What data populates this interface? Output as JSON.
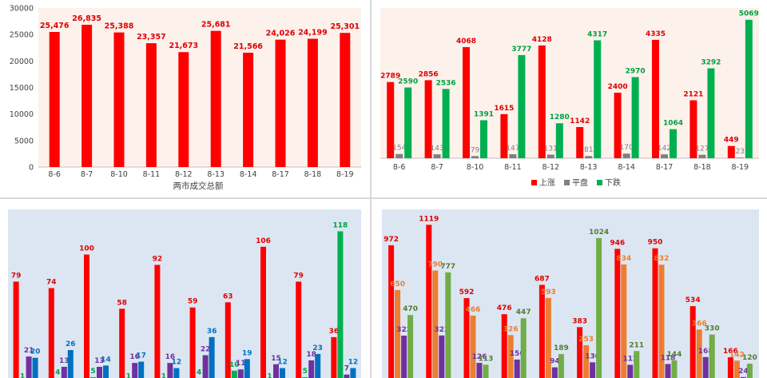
{
  "colors": {
    "red": "#ff0000",
    "gray": "#7f7f7f",
    "green": "#00b050",
    "purple": "#7030a0",
    "blue": "#0070c0",
    "orange": "#ed7d31",
    "olive": "#70ad47",
    "plot_bg_top": "#fdf1ec",
    "plot_bg_bottom": "#dce6f2"
  },
  "chart_data": [
    {
      "type": "bar",
      "title": "",
      "xlabel": "两市成交总额",
      "ylabel": "",
      "ylim": [
        0,
        30000
      ],
      "yticks": [
        "0",
        "5000",
        "10000",
        "15000",
        "20000",
        "25000",
        "30000"
      ],
      "categories": [
        "8-6",
        "8-7",
        "8-10",
        "8-11",
        "8-12",
        "8-13",
        "8-14",
        "8-17",
        "8-18",
        "8-19"
      ],
      "values": [
        25476,
        26835,
        25388,
        23357,
        21673,
        25681,
        21566,
        24026,
        24199,
        25301
      ],
      "data_labels": [
        "25,476",
        "26,835",
        "25,388",
        "23,357",
        "21,673",
        "25,681",
        "21,566",
        "24,026",
        "24,199",
        "25,301"
      ],
      "grid": false
    },
    {
      "type": "bar",
      "title": "",
      "categories": [
        "8-6",
        "8-7",
        "8-10",
        "8-11",
        "8-12",
        "8-13",
        "8-14",
        "8-17",
        "8-18",
        "8-19"
      ],
      "ylim": [
        0,
        5500
      ],
      "legend_position": "bottom",
      "series": [
        {
          "name": "上涨",
          "values": [
            2789,
            2856,
            4068,
            1615,
            4128,
            1142,
            2400,
            4335,
            2121,
            449
          ]
        },
        {
          "name": "平盘",
          "values": [
            154,
            143,
            79,
            147,
            131,
            81,
            170,
            142,
            127,
            23
          ]
        },
        {
          "name": "下跌",
          "values": [
            2590,
            2536,
            1391,
            3777,
            1280,
            4317,
            2970,
            1064,
            3292,
            5069
          ]
        }
      ],
      "grid": false
    },
    {
      "type": "bar",
      "title": "",
      "ylim": [
        0,
        135
      ],
      "series": [
        {
          "values": [
            79,
            74,
            100,
            58,
            92,
            59,
            63,
            106,
            79,
            36
          ]
        },
        {
          "values": [
            1,
            4,
            5,
            1,
            1,
            4,
            10,
            1,
            5,
            118
          ]
        },
        {
          "values": [
            21,
            13,
            13,
            16,
            16,
            22,
            11,
            15,
            18,
            7
          ]
        },
        {
          "values": [
            20,
            26,
            14,
            17,
            12,
            36,
            19,
            12,
            23,
            12
          ]
        }
      ],
      "data_labels": [
        [
          "79",
          "74",
          "100",
          "58",
          "92",
          "59",
          "63",
          "106",
          "79",
          "36"
        ],
        [
          "1",
          "4",
          "5",
          "1",
          "1",
          "4",
          "10",
          "1",
          "5",
          "118"
        ],
        [
          "21",
          "13",
          "13",
          "16",
          "16",
          "22",
          "11",
          "15",
          "18",
          "7"
        ],
        [
          "20",
          "26",
          "14",
          "17",
          "12",
          "36",
          "19",
          "12",
          "23",
          "12"
        ]
      ],
      "grid": false
    },
    {
      "type": "bar",
      "title": "",
      "ylim": [
        0,
        1230
      ],
      "series": [
        {
          "values": [
            972,
            1119,
            592,
            476,
            687,
            383,
            946,
            950,
            534,
            166
          ]
        },
        {
          "values": [
            650,
            790,
            466,
            326,
            593,
            253,
            834,
            832,
            366,
            142
          ]
        },
        {
          "values": [
            322,
            323,
            126,
            150,
            94,
            130,
            112,
            118,
            168,
            24
          ]
        },
        {
          "values": [
            470,
            777,
            113,
            447,
            189,
            1024,
            211,
            144,
            330,
            120
          ]
        }
      ],
      "data_labels": [
        [
          "972",
          "1119",
          "592",
          "476",
          "687",
          "383",
          "946",
          "950",
          "534",
          "166"
        ],
        [
          "650",
          "790",
          "466",
          "326",
          "593",
          "253",
          "834",
          "832",
          "366",
          "142"
        ],
        [
          "322",
          "323",
          "126",
          "150",
          "94",
          "130",
          "112",
          "118",
          "168",
          "24"
        ],
        [
          "470",
          "777",
          "113",
          "447",
          "189",
          "1024",
          "211",
          "144",
          "330",
          "120"
        ]
      ],
      "grid": false
    }
  ]
}
